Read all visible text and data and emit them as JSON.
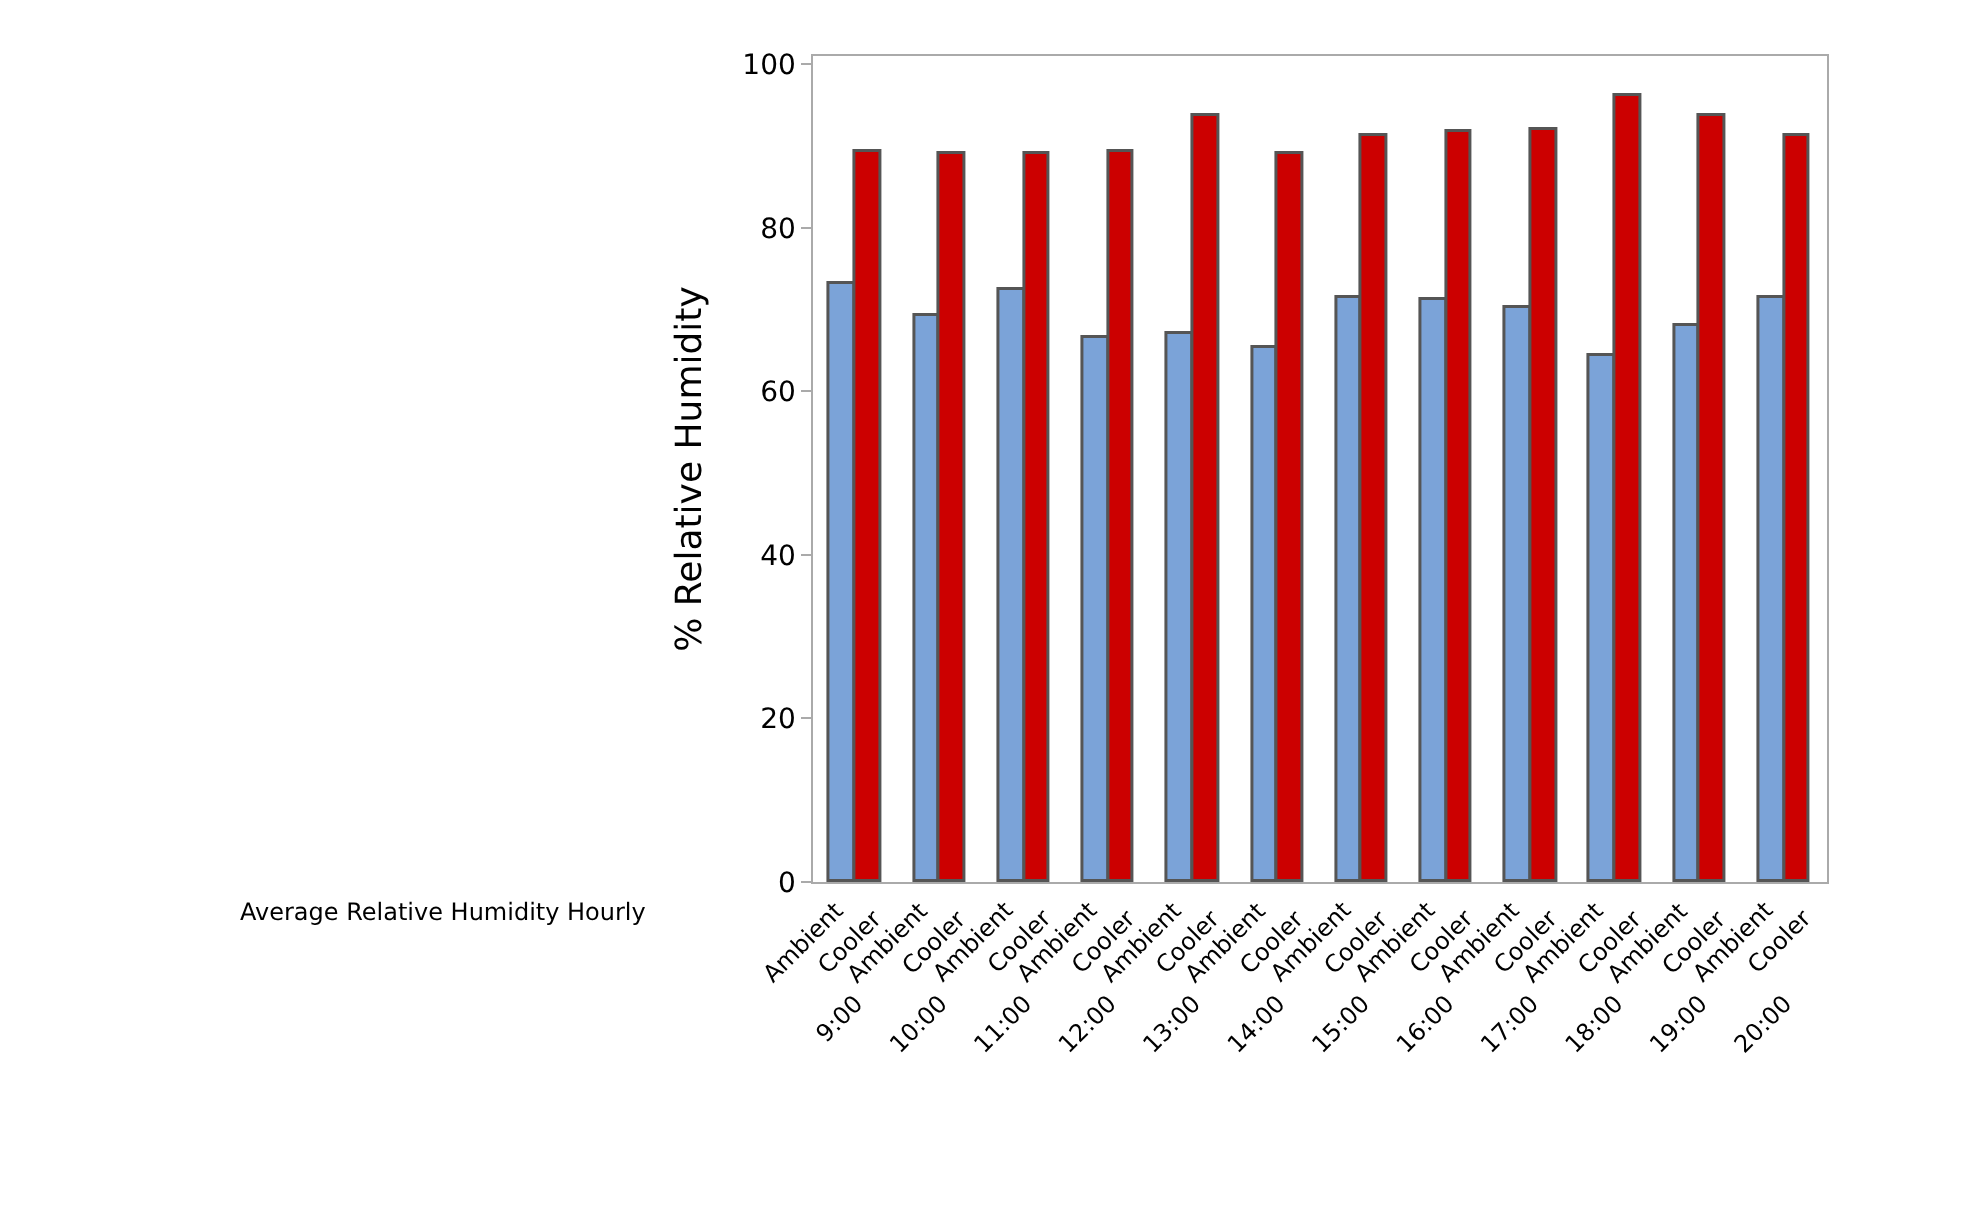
{
  "chart_data": {
    "type": "bar",
    "title": "Average Relative Humidity Hourly",
    "ylabel": "% Relative Humidity",
    "categories": [
      "9:00",
      "10:00",
      "11:00",
      "12:00",
      "13:00",
      "14:00",
      "15:00",
      "16:00",
      "17:00",
      "18:00",
      "19:00",
      "20:00"
    ],
    "series": [
      {
        "name": "Ambient",
        "color": "#7ba3d8",
        "values": [
          73.2,
          69.3,
          72.4,
          66.6,
          67.1,
          65.3,
          71.5,
          71.1,
          70.2,
          64.3,
          67.9,
          71.5
        ]
      },
      {
        "name": "Cooler",
        "color": "#cc0000",
        "values": [
          89.3,
          88.9,
          88.9,
          89.3,
          93.7,
          88.9,
          91.2,
          91.6,
          92.0,
          96.0,
          93.7,
          91.2
        ]
      }
    ],
    "ylim": [
      0,
      101
    ],
    "yticks": [
      0,
      20,
      40,
      60,
      80,
      100
    ],
    "legend": false
  }
}
